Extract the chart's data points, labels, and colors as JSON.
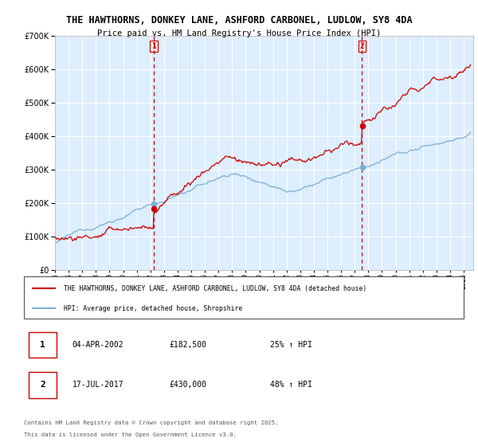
{
  "title_line1": "THE HAWTHORNS, DONKEY LANE, ASHFORD CARBONEL, LUDLOW, SY8 4DA",
  "title_line2": "Price paid vs. HM Land Registry's House Price Index (HPI)",
  "ylim": [
    0,
    700000
  ],
  "yticks": [
    0,
    100000,
    200000,
    300000,
    400000,
    500000,
    600000,
    700000
  ],
  "sale1_date": "04-APR-2002",
  "sale1_price": 182500,
  "sale1_hpi_pct": "25%",
  "sale2_date": "17-JUL-2017",
  "sale2_price": 430000,
  "sale2_hpi_pct": "48%",
  "vline1_x": 2002.25,
  "vline2_x": 2017.54,
  "legend_label_red": "THE HAWTHORNS, DONKEY LANE, ASHFORD CARBONEL, LUDLOW, SY8 4DA (detached house)",
  "legend_label_blue": "HPI: Average price, detached house, Shropshire",
  "footer_line1": "Contains HM Land Registry data © Crown copyright and database right 2025.",
  "footer_line2": "This data is licensed under the Open Government Licence v3.0.",
  "red_color": "#cc0000",
  "blue_color": "#7aafd4",
  "bg_color": "#ddeeff",
  "grid_color": "#ffffff",
  "vline_color": "#cc0000",
  "xlim_left": 1995.0,
  "xlim_right": 2025.7
}
